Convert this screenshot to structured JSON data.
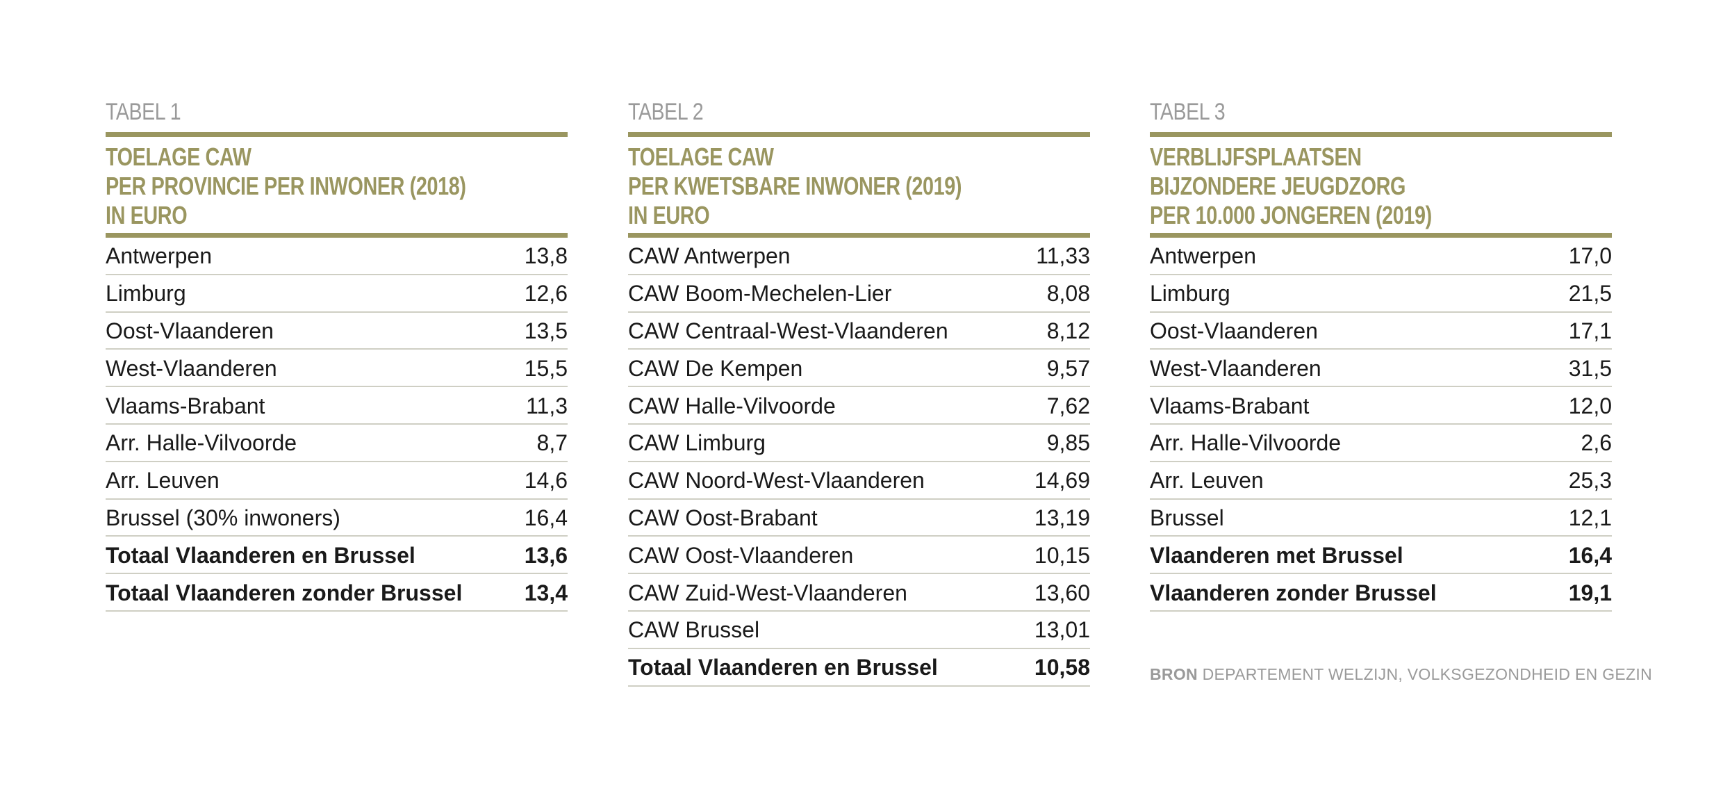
{
  "tables": [
    {
      "label": "TABEL 1",
      "title_lines": [
        "TOELAGE CAW",
        "PER PROVINCIE PER INWONER (2018)",
        "IN EURO"
      ],
      "rows": [
        {
          "name": "Antwerpen",
          "value": "13,8",
          "bold": false
        },
        {
          "name": "Limburg",
          "value": "12,6",
          "bold": false
        },
        {
          "name": "Oost-Vlaanderen",
          "value": "13,5",
          "bold": false
        },
        {
          "name": "West-Vlaanderen",
          "value": "15,5",
          "bold": false
        },
        {
          "name": "Vlaams-Brabant",
          "value": "11,3",
          "bold": false
        },
        {
          "name": "Arr. Halle-Vilvoorde",
          "value": "8,7",
          "bold": false
        },
        {
          "name": "Arr. Leuven",
          "value": "14,6",
          "bold": false
        },
        {
          "name": "Brussel (30% inwoners)",
          "value": "16,4",
          "bold": false
        },
        {
          "name": "Totaal Vlaanderen en Brussel",
          "value": "13,6",
          "bold": true
        },
        {
          "name": "Totaal Vlaanderen zonder Brussel",
          "value": "13,4",
          "bold": true
        }
      ]
    },
    {
      "label": "TABEL 2",
      "title_lines": [
        "TOELAGE CAW",
        "PER KWETSBARE INWONER (2019)",
        "IN EURO"
      ],
      "rows": [
        {
          "name": "CAW Antwerpen",
          "value": "11,33",
          "bold": false
        },
        {
          "name": "CAW Boom-Mechelen-Lier",
          "value": "8,08",
          "bold": false
        },
        {
          "name": "CAW Centraal-West-Vlaanderen",
          "value": "8,12",
          "bold": false
        },
        {
          "name": "CAW De Kempen",
          "value": "9,57",
          "bold": false
        },
        {
          "name": "CAW Halle-Vilvoorde",
          "value": "7,62",
          "bold": false
        },
        {
          "name": "CAW Limburg",
          "value": "9,85",
          "bold": false
        },
        {
          "name": "CAW Noord-West-Vlaanderen",
          "value": "14,69",
          "bold": false
        },
        {
          "name": "CAW Oost-Brabant",
          "value": "13,19",
          "bold": false
        },
        {
          "name": "CAW Oost-Vlaanderen",
          "value": "10,15",
          "bold": false
        },
        {
          "name": "CAW Zuid-West-Vlaanderen",
          "value": "13,60",
          "bold": false
        },
        {
          "name": "CAW Brussel",
          "value": "13,01",
          "bold": false
        },
        {
          "name": "Totaal Vlaanderen en Brussel",
          "value": "10,58",
          "bold": true
        }
      ]
    },
    {
      "label": "TABEL 3",
      "title_lines": [
        "VERBLIJFSPLAATSEN",
        "BIJZONDERE JEUGDZORG",
        "PER 10.000 JONGEREN (2019)"
      ],
      "rows": [
        {
          "name": "Antwerpen",
          "value": "17,0",
          "bold": false
        },
        {
          "name": "Limburg",
          "value": "21,5",
          "bold": false
        },
        {
          "name": "Oost-Vlaanderen",
          "value": "17,1",
          "bold": false
        },
        {
          "name": "West-Vlaanderen",
          "value": "31,5",
          "bold": false
        },
        {
          "name": "Vlaams-Brabant",
          "value": "12,0",
          "bold": false
        },
        {
          "name": "Arr. Halle-Vilvoorde",
          "value": "2,6",
          "bold": false
        },
        {
          "name": "Arr. Leuven",
          "value": "25,3",
          "bold": false
        },
        {
          "name": "Brussel",
          "value": "12,1",
          "bold": false
        },
        {
          "name": "Vlaanderen met Brussel",
          "value": "16,4",
          "bold": true
        },
        {
          "name": "Vlaanderen zonder Brussel",
          "value": "19,1",
          "bold": true
        }
      ]
    }
  ],
  "source": {
    "label": "BRON",
    "text": "DEPARTEMENT WELZIJN, VOLKSGEZONDHEID EN GEZIN"
  },
  "colors": {
    "accent": "#9a9660",
    "label_gray": "#9a9a9a",
    "row_rule": "#cfcfc4",
    "text": "#1a1a1a"
  }
}
